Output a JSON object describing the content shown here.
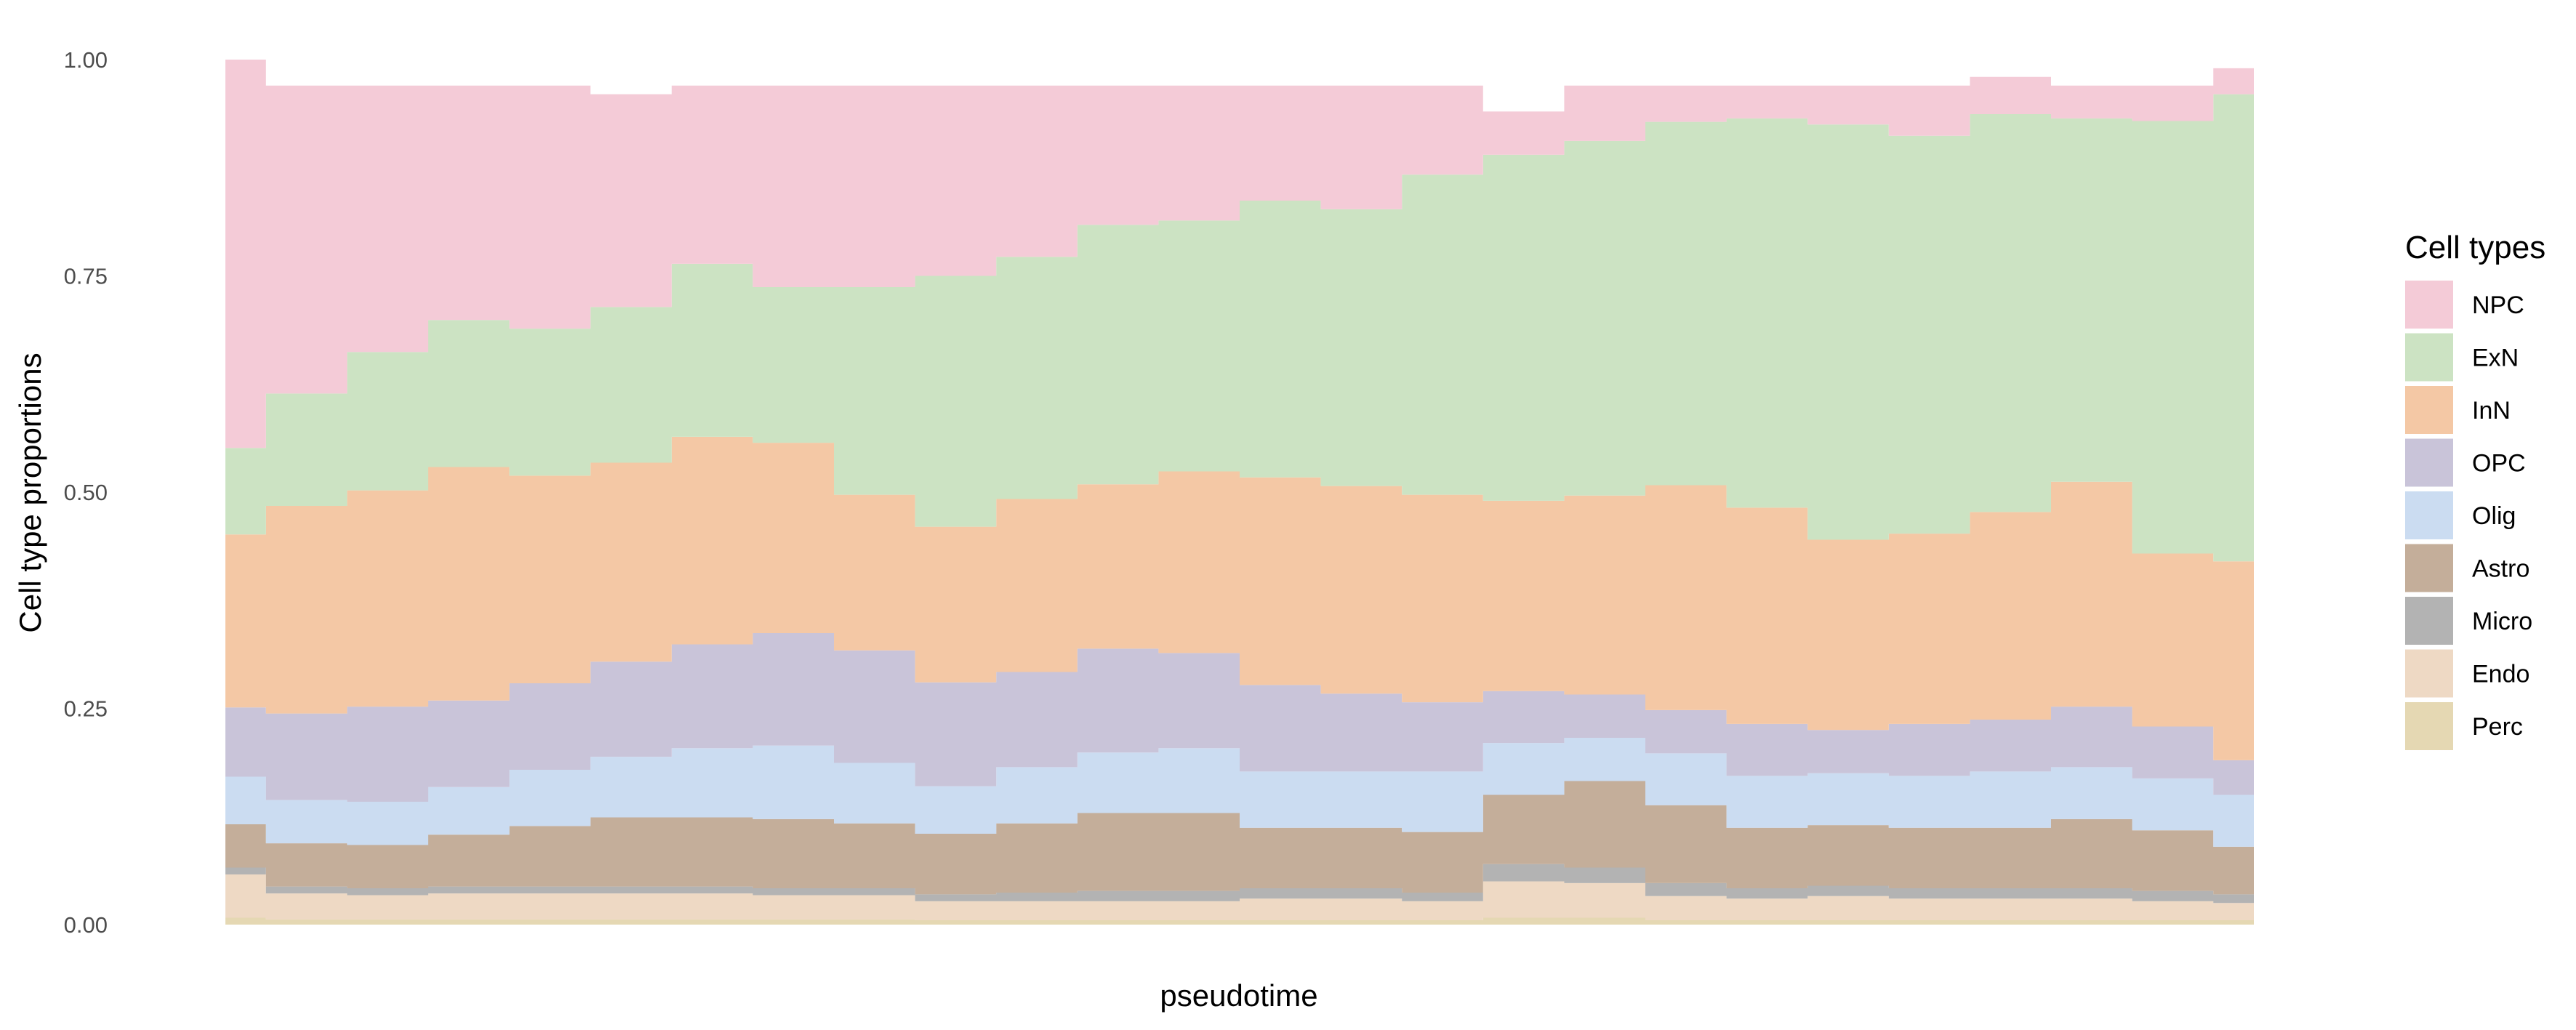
{
  "chart_data": {
    "type": "area",
    "stacked": true,
    "normalized": true,
    "xlabel": "pseudotime",
    "ylabel": "Cell type proportions",
    "ylim": [
      0,
      1
    ],
    "y_ticks": [
      "0.00",
      "0.25",
      "0.50",
      "0.75",
      "1.00"
    ],
    "x_ticks": [],
    "grid": false,
    "legend": {
      "title": "Cell types",
      "position": "right"
    },
    "x": [
      0,
      0.04,
      0.08,
      0.12,
      0.16,
      0.2,
      0.24,
      0.28,
      0.32,
      0.36,
      0.4,
      0.44,
      0.48,
      0.52,
      0.56,
      0.6,
      0.64,
      0.68,
      0.72,
      0.76,
      0.8,
      0.84,
      0.88,
      0.92,
      0.96,
      1.0
    ],
    "series": [
      {
        "name": "Perc",
        "color": "#e5d8b3",
        "values": [
          0.008,
          0.006,
          0.006,
          0.006,
          0.006,
          0.006,
          0.006,
          0.006,
          0.006,
          0.005,
          0.005,
          0.005,
          0.005,
          0.005,
          0.005,
          0.005,
          0.008,
          0.008,
          0.005,
          0.005,
          0.005,
          0.005,
          0.005,
          0.005,
          0.005,
          0.005
        ]
      },
      {
        "name": "Endo",
        "color": "#eed9c4",
        "values": [
          0.05,
          0.03,
          0.028,
          0.03,
          0.03,
          0.03,
          0.03,
          0.028,
          0.028,
          0.022,
          0.022,
          0.022,
          0.022,
          0.025,
          0.025,
          0.022,
          0.042,
          0.04,
          0.028,
          0.025,
          0.028,
          0.025,
          0.025,
          0.025,
          0.022,
          0.02
        ]
      },
      {
        "name": "Micro",
        "color": "#b3b3b3",
        "values": [
          0.008,
          0.008,
          0.008,
          0.008,
          0.008,
          0.008,
          0.008,
          0.008,
          0.008,
          0.008,
          0.01,
          0.012,
          0.012,
          0.012,
          0.012,
          0.01,
          0.02,
          0.018,
          0.015,
          0.012,
          0.012,
          0.012,
          0.012,
          0.012,
          0.012,
          0.01
        ]
      },
      {
        "name": "Astro",
        "color": "#c4ae9a",
        "values": [
          0.05,
          0.05,
          0.05,
          0.06,
          0.07,
          0.08,
          0.08,
          0.08,
          0.075,
          0.07,
          0.08,
          0.09,
          0.09,
          0.07,
          0.07,
          0.07,
          0.08,
          0.1,
          0.09,
          0.07,
          0.07,
          0.07,
          0.07,
          0.08,
          0.07,
          0.055
        ]
      },
      {
        "name": "Olig",
        "color": "#cbdcf1",
        "values": [
          0.055,
          0.05,
          0.05,
          0.055,
          0.065,
          0.07,
          0.08,
          0.085,
          0.07,
          0.055,
          0.065,
          0.07,
          0.075,
          0.065,
          0.065,
          0.07,
          0.06,
          0.05,
          0.06,
          0.06,
          0.06,
          0.06,
          0.065,
          0.06,
          0.06,
          0.06
        ]
      },
      {
        "name": "OPC",
        "color": "#c9c4d9",
        "values": [
          0.08,
          0.1,
          0.11,
          0.1,
          0.1,
          0.11,
          0.12,
          0.13,
          0.13,
          0.12,
          0.11,
          0.12,
          0.11,
          0.1,
          0.09,
          0.08,
          0.06,
          0.05,
          0.05,
          0.06,
          0.05,
          0.06,
          0.06,
          0.07,
          0.06,
          0.04
        ]
      },
      {
        "name": "InN",
        "color": "#f4c8a5",
        "values": [
          0.2,
          0.24,
          0.25,
          0.27,
          0.24,
          0.23,
          0.24,
          0.22,
          0.18,
          0.18,
          0.2,
          0.19,
          0.21,
          0.24,
          0.24,
          0.24,
          0.22,
          0.23,
          0.26,
          0.25,
          0.22,
          0.22,
          0.24,
          0.26,
          0.2,
          0.23
        ]
      },
      {
        "name": "ExN",
        "color": "#cce3c3",
        "values": [
          0.1,
          0.13,
          0.16,
          0.17,
          0.17,
          0.18,
          0.2,
          0.18,
          0.24,
          0.29,
          0.28,
          0.3,
          0.29,
          0.32,
          0.32,
          0.37,
          0.4,
          0.41,
          0.42,
          0.45,
          0.48,
          0.46,
          0.46,
          0.42,
          0.5,
          0.54
        ]
      },
      {
        "name": "NPC",
        "color": "#f4cbd7",
        "values": [
          0.449,
          0.356,
          0.308,
          0.271,
          0.281,
          0.246,
          0.206,
          0.233,
          0.233,
          0.22,
          0.198,
          0.161,
          0.156,
          0.133,
          0.143,
          0.103,
          0.05,
          0.064,
          0.042,
          0.038,
          0.045,
          0.058,
          0.043,
          0.038,
          0.041,
          0.03
        ]
      }
    ]
  }
}
